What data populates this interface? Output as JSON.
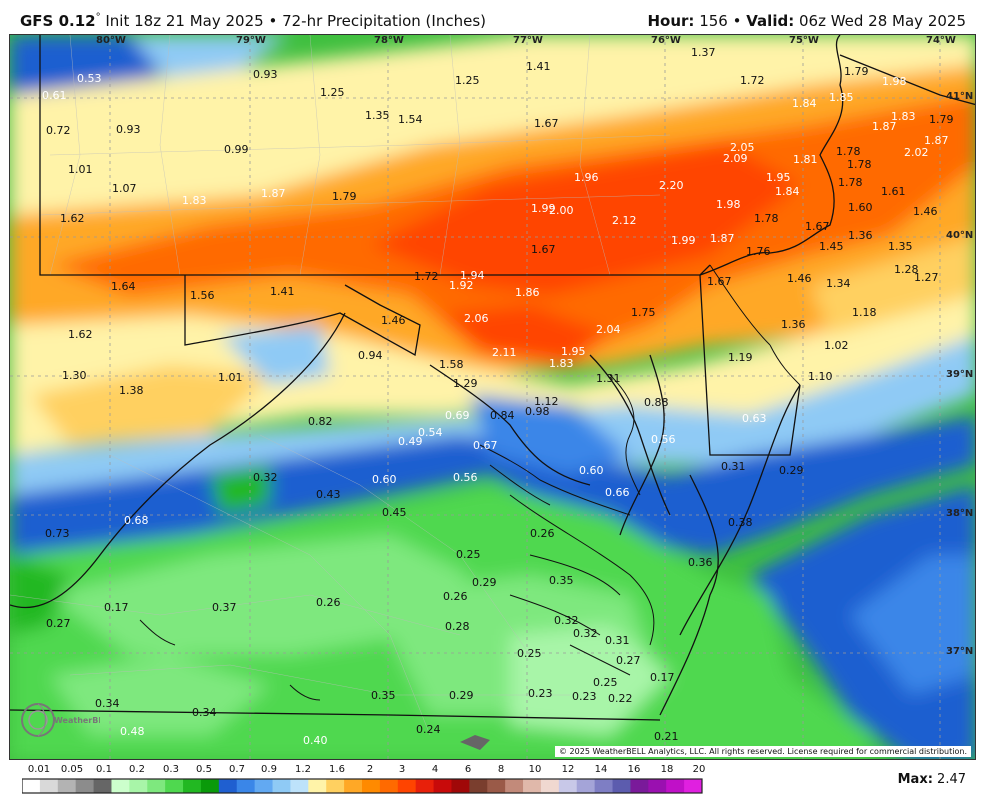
{
  "header": {
    "model": "GFS 0.12",
    "degree_mark": "°",
    "init": "Init 18z 21 May 2025",
    "separator": "•",
    "product": "72-hr Precipitation (Inches)",
    "hour_label": "Hour:",
    "hour_value": "156",
    "valid_label": "Valid:",
    "valid_value": "06z Wed 28 May 2025"
  },
  "map": {
    "lon_labels": [
      "80°W",
      "79°W",
      "78°W",
      "77°W",
      "76°W",
      "75°W",
      "74°W"
    ],
    "lat_labels": [
      "41°N",
      "40°N",
      "39°N",
      "38°N",
      "37°N"
    ],
    "values": [
      {
        "v": "0.53",
        "c": "w"
      },
      {
        "v": "0.61",
        "c": "w"
      },
      {
        "v": "0.72",
        "c": "k"
      },
      {
        "v": "0.93",
        "c": "k"
      },
      {
        "v": "0.93",
        "c": "k"
      },
      {
        "v": "1.25",
        "c": "k"
      },
      {
        "v": "1.25",
        "c": "k"
      },
      {
        "v": "1.41",
        "c": "k"
      },
      {
        "v": "1.37",
        "c": "k"
      },
      {
        "v": "1.72",
        "c": "k"
      },
      {
        "v": "1.79",
        "c": "k"
      },
      {
        "v": "1.98",
        "c": "w"
      },
      {
        "v": "1.01",
        "c": "k"
      },
      {
        "v": "0.99",
        "c": "k"
      },
      {
        "v": "1.35",
        "c": "k"
      },
      {
        "v": "1.54",
        "c": "k"
      },
      {
        "v": "1.67",
        "c": "k"
      },
      {
        "v": "1.84",
        "c": "w"
      },
      {
        "v": "1.85",
        "c": "w"
      },
      {
        "v": "1.83",
        "c": "w"
      },
      {
        "v": "1.79",
        "c": "k"
      },
      {
        "v": "1.87",
        "c": "w"
      },
      {
        "v": "2.05",
        "c": "w"
      },
      {
        "v": "2.09",
        "c": "w"
      },
      {
        "v": "1.81",
        "c": "w"
      },
      {
        "v": "1.78",
        "c": "k"
      },
      {
        "v": "1.78",
        "c": "k"
      },
      {
        "v": "2.02",
        "c": "w"
      },
      {
        "v": "1.87",
        "c": "w"
      },
      {
        "v": "1.07",
        "c": "k"
      },
      {
        "v": "1.96",
        "c": "w"
      },
      {
        "v": "1.95",
        "c": "w"
      },
      {
        "v": "1.78",
        "c": "k"
      },
      {
        "v": "1.61",
        "c": "k"
      },
      {
        "v": "1.62",
        "c": "k"
      },
      {
        "v": "1.83",
        "c": "w"
      },
      {
        "v": "1.87",
        "c": "w"
      },
      {
        "v": "1.79",
        "c": "k"
      },
      {
        "v": "2.20",
        "c": "w"
      },
      {
        "v": "1.84",
        "c": "w"
      },
      {
        "v": "1.98",
        "c": "w"
      },
      {
        "v": "1.99",
        "c": "w"
      },
      {
        "v": "2.00",
        "c": "w"
      },
      {
        "v": "2.12",
        "c": "w"
      },
      {
        "v": "1.60",
        "c": "k"
      },
      {
        "v": "1.46",
        "c": "k"
      },
      {
        "v": "1.78",
        "c": "k"
      },
      {
        "v": "1.67",
        "c": "k"
      },
      {
        "v": "1.36",
        "c": "k"
      },
      {
        "v": "1.99",
        "c": "w"
      },
      {
        "v": "1.87",
        "c": "w"
      },
      {
        "v": "1.67",
        "c": "k"
      },
      {
        "v": "1.76",
        "c": "k"
      },
      {
        "v": "1.45",
        "c": "k"
      },
      {
        "v": "1.35",
        "c": "k"
      },
      {
        "v": "1.28",
        "c": "k"
      },
      {
        "v": "1.27",
        "c": "k"
      },
      {
        "v": "1.72",
        "c": "k"
      },
      {
        "v": "1.94",
        "c": "w"
      },
      {
        "v": "1.92",
        "c": "w"
      },
      {
        "v": "1.64",
        "c": "k"
      },
      {
        "v": "1.56",
        "c": "k"
      },
      {
        "v": "1.41",
        "c": "k"
      },
      {
        "v": "1.86",
        "c": "w"
      },
      {
        "v": "1.67",
        "c": "k"
      },
      {
        "v": "1.46",
        "c": "k"
      },
      {
        "v": "1.34",
        "c": "k"
      },
      {
        "v": "1.46",
        "c": "k"
      },
      {
        "v": "2.06",
        "c": "w"
      },
      {
        "v": "1.75",
        "c": "k"
      },
      {
        "v": "1.18",
        "c": "k"
      },
      {
        "v": "1.62",
        "c": "k"
      },
      {
        "v": "2.04",
        "c": "w"
      },
      {
        "v": "1.36",
        "c": "k"
      },
      {
        "v": "0.94",
        "c": "k"
      },
      {
        "v": "2.11",
        "c": "w"
      },
      {
        "v": "1.95",
        "c": "w"
      },
      {
        "v": "1.58",
        "c": "k"
      },
      {
        "v": "1.83",
        "c": "w"
      },
      {
        "v": "1.19",
        "c": "k"
      },
      {
        "v": "1.02",
        "c": "k"
      },
      {
        "v": "1.30",
        "c": "k"
      },
      {
        "v": "1.01",
        "c": "k"
      },
      {
        "v": "1.31",
        "c": "k"
      },
      {
        "v": "1.10",
        "c": "k"
      },
      {
        "v": "1.38",
        "c": "k"
      },
      {
        "v": "1.29",
        "c": "k"
      },
      {
        "v": "1.12",
        "c": "k"
      },
      {
        "v": "0.88",
        "c": "k"
      },
      {
        "v": "0.98",
        "c": "k"
      },
      {
        "v": "0.69",
        "c": "w"
      },
      {
        "v": "0.84",
        "c": "k"
      },
      {
        "v": "0.82",
        "c": "k"
      },
      {
        "v": "0.63",
        "c": "w"
      },
      {
        "v": "0.54",
        "c": "w"
      },
      {
        "v": "0.49",
        "c": "w"
      },
      {
        "v": "0.67",
        "c": "w"
      },
      {
        "v": "0.56",
        "c": "w"
      },
      {
        "v": "0.31",
        "c": "k"
      },
      {
        "v": "0.29",
        "c": "k"
      },
      {
        "v": "0.60",
        "c": "w"
      },
      {
        "v": "0.32",
        "c": "k"
      },
      {
        "v": "0.60",
        "c": "w"
      },
      {
        "v": "0.56",
        "c": "w"
      },
      {
        "v": "0.43",
        "c": "k"
      },
      {
        "v": "0.66",
        "c": "w"
      },
      {
        "v": "0.45",
        "c": "k"
      },
      {
        "v": "0.68",
        "c": "w"
      },
      {
        "v": "0.38",
        "c": "k"
      },
      {
        "v": "0.73",
        "c": "k"
      },
      {
        "v": "0.26",
        "c": "k"
      },
      {
        "v": "0.25",
        "c": "k"
      },
      {
        "v": "0.36",
        "c": "k"
      },
      {
        "v": "0.29",
        "c": "k"
      },
      {
        "v": "0.35",
        "c": "k"
      },
      {
        "v": "0.17",
        "c": "k"
      },
      {
        "v": "0.37",
        "c": "k"
      },
      {
        "v": "0.26",
        "c": "k"
      },
      {
        "v": "0.26",
        "c": "k"
      },
      {
        "v": "0.32",
        "c": "k"
      },
      {
        "v": "0.27",
        "c": "k"
      },
      {
        "v": "0.28",
        "c": "k"
      },
      {
        "v": "0.32",
        "c": "k"
      },
      {
        "v": "0.31",
        "c": "k"
      },
      {
        "v": "0.25",
        "c": "k"
      },
      {
        "v": "0.27",
        "c": "k"
      },
      {
        "v": "0.17",
        "c": "k"
      },
      {
        "v": "0.25",
        "c": "k"
      },
      {
        "v": "0.34",
        "c": "k"
      },
      {
        "v": "0.35",
        "c": "k"
      },
      {
        "v": "0.29",
        "c": "k"
      },
      {
        "v": "0.23",
        "c": "k"
      },
      {
        "v": "0.23",
        "c": "k"
      },
      {
        "v": "0.22",
        "c": "k"
      },
      {
        "v": "0.34",
        "c": "k"
      },
      {
        "v": "0.48",
        "c": "w"
      },
      {
        "v": "0.24",
        "c": "k"
      },
      {
        "v": "0.21",
        "c": "k"
      },
      {
        "v": "0.40",
        "c": "w"
      }
    ]
  },
  "legend": {
    "ticks": [
      "0.01",
      "0.05",
      "0.1",
      "0.2",
      "0.3",
      "0.5",
      "0.7",
      "0.9",
      "1.2",
      "1.6",
      "2",
      "3",
      "4",
      "6",
      "8",
      "10",
      "12",
      "14",
      "16",
      "18",
      "20"
    ],
    "colors": [
      "#ffffff",
      "#d9d9d9",
      "#b3b3b3",
      "#8c8c8c",
      "#666666",
      "#ccffcc",
      "#a8f5a8",
      "#7ee87e",
      "#4fd84f",
      "#22b822",
      "#0a9a0a",
      "#1f5fd0",
      "#3a86e8",
      "#62a9f2",
      "#8fcaf5",
      "#bde2fa",
      "#fff3a8",
      "#ffd060",
      "#ffa826",
      "#ff8a00",
      "#ff6a00",
      "#ff4400",
      "#e8200a",
      "#c80a0a",
      "#a00808",
      "#7a3e2e",
      "#9a5a48",
      "#c28a7a",
      "#e0b8aa",
      "#f0d8d0",
      "#c8c8e8",
      "#a4a4d8",
      "#7e7ec4",
      "#5c5cae",
      "#7a1a9a",
      "#9a10b0",
      "#c010c8",
      "#e020e0"
    ],
    "max_label": "Max:",
    "max_value": "2.47"
  },
  "footer": {
    "copyright": "© 2025 WeatherBELL Analytics, LLC. All rights reserved. License required for commercial distribution.",
    "logo_text": "WeatherBELL"
  }
}
